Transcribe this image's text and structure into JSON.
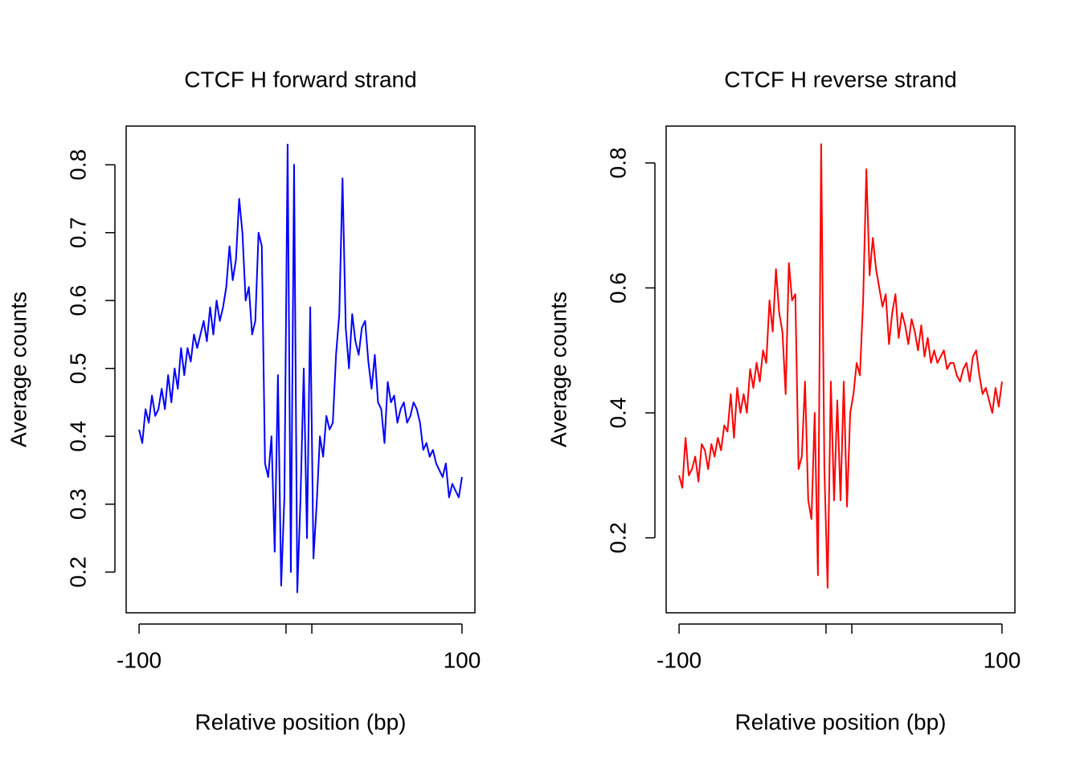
{
  "chart_data": [
    {
      "type": "line",
      "title": "CTCF H forward strand",
      "xlabel": "Relative position (bp)",
      "ylabel": "Average counts",
      "color": "#0000ff",
      "x": [
        -100,
        -98,
        -96,
        -94,
        -92,
        -90,
        -88,
        -86,
        -84,
        -82,
        -80,
        -78,
        -76,
        -74,
        -72,
        -70,
        -68,
        -66,
        -64,
        -62,
        -60,
        -58,
        -56,
        -54,
        -52,
        -50,
        -48,
        -46,
        -44,
        -42,
        -40,
        -38,
        -36,
        -34,
        -32,
        -30,
        -28,
        -26,
        -24,
        -22,
        -20,
        -18,
        -16,
        -14,
        -12,
        -10,
        -8,
        -6,
        -4,
        -2,
        0,
        2,
        4,
        6,
        8,
        10,
        12,
        14,
        16,
        18,
        20,
        22,
        24,
        26,
        28,
        30,
        32,
        34,
        36,
        38,
        40,
        42,
        44,
        46,
        48,
        50,
        52,
        54,
        56,
        58,
        60,
        62,
        64,
        66,
        68,
        70,
        72,
        74,
        76,
        78,
        80,
        82,
        84,
        86,
        88,
        90,
        92,
        94,
        96,
        98,
        100
      ],
      "values": [
        0.41,
        0.39,
        0.44,
        0.42,
        0.46,
        0.43,
        0.44,
        0.47,
        0.44,
        0.49,
        0.45,
        0.5,
        0.47,
        0.53,
        0.49,
        0.53,
        0.51,
        0.55,
        0.53,
        0.55,
        0.57,
        0.54,
        0.59,
        0.55,
        0.6,
        0.57,
        0.59,
        0.62,
        0.68,
        0.63,
        0.66,
        0.75,
        0.7,
        0.6,
        0.62,
        0.55,
        0.57,
        0.7,
        0.68,
        0.36,
        0.34,
        0.4,
        0.23,
        0.49,
        0.18,
        0.31,
        0.83,
        0.2,
        0.8,
        0.17,
        0.31,
        0.5,
        0.25,
        0.59,
        0.22,
        0.3,
        0.4,
        0.37,
        0.43,
        0.41,
        0.42,
        0.52,
        0.58,
        0.78,
        0.56,
        0.5,
        0.58,
        0.54,
        0.52,
        0.56,
        0.57,
        0.51,
        0.47,
        0.52,
        0.45,
        0.44,
        0.39,
        0.48,
        0.45,
        0.46,
        0.42,
        0.44,
        0.45,
        0.42,
        0.43,
        0.45,
        0.44,
        0.42,
        0.38,
        0.39,
        0.37,
        0.38,
        0.36,
        0.35,
        0.34,
        0.36,
        0.31,
        0.33,
        0.32,
        0.31,
        0.34
      ],
      "xlim": [
        -108,
        108
      ],
      "xticks": [
        -100,
        {
          "value": -9,
          "label": null
        },
        {
          "value": 7,
          "label": null
        },
        100
      ],
      "ylim": [
        0.14,
        0.857
      ],
      "yticks": [
        0.2,
        0.3,
        0.4,
        0.5,
        0.6,
        0.7,
        0.8
      ]
    },
    {
      "type": "line",
      "title": "CTCF H reverse strand",
      "xlabel": "Relative position (bp)",
      "ylabel": "Average counts",
      "color": "#ff0000",
      "x": [
        -100,
        -98,
        -96,
        -94,
        -92,
        -90,
        -88,
        -86,
        -84,
        -82,
        -80,
        -78,
        -76,
        -74,
        -72,
        -70,
        -68,
        -66,
        -64,
        -62,
        -60,
        -58,
        -56,
        -54,
        -52,
        -50,
        -48,
        -46,
        -44,
        -42,
        -40,
        -38,
        -36,
        -34,
        -32,
        -30,
        -28,
        -26,
        -24,
        -22,
        -20,
        -18,
        -16,
        -14,
        -12,
        -10,
        -8,
        -6,
        -4,
        -2,
        0,
        2,
        4,
        6,
        8,
        10,
        12,
        14,
        16,
        18,
        20,
        22,
        24,
        26,
        28,
        30,
        32,
        34,
        36,
        38,
        40,
        42,
        44,
        46,
        48,
        50,
        52,
        54,
        56,
        58,
        60,
        62,
        64,
        66,
        68,
        70,
        72,
        74,
        76,
        78,
        80,
        82,
        84,
        86,
        88,
        90,
        92,
        94,
        96,
        98,
        100
      ],
      "values": [
        0.3,
        0.28,
        0.36,
        0.3,
        0.31,
        0.33,
        0.29,
        0.35,
        0.34,
        0.31,
        0.35,
        0.33,
        0.36,
        0.34,
        0.38,
        0.37,
        0.43,
        0.36,
        0.44,
        0.4,
        0.43,
        0.4,
        0.47,
        0.44,
        0.48,
        0.45,
        0.5,
        0.48,
        0.58,
        0.53,
        0.63,
        0.56,
        0.53,
        0.43,
        0.64,
        0.58,
        0.59,
        0.31,
        0.33,
        0.45,
        0.26,
        0.23,
        0.4,
        0.14,
        0.83,
        0.31,
        0.12,
        0.45,
        0.26,
        0.42,
        0.26,
        0.45,
        0.25,
        0.4,
        0.43,
        0.48,
        0.46,
        0.58,
        0.79,
        0.62,
        0.68,
        0.63,
        0.6,
        0.57,
        0.59,
        0.51,
        0.56,
        0.59,
        0.52,
        0.56,
        0.54,
        0.51,
        0.55,
        0.53,
        0.5,
        0.54,
        0.49,
        0.52,
        0.48,
        0.5,
        0.48,
        0.49,
        0.5,
        0.47,
        0.48,
        0.48,
        0.46,
        0.45,
        0.47,
        0.48,
        0.45,
        0.49,
        0.5,
        0.46,
        0.43,
        0.44,
        0.42,
        0.4,
        0.44,
        0.41,
        0.45
      ],
      "xlim": [
        -108,
        108
      ],
      "xticks": [
        -100,
        {
          "value": -9,
          "label": null
        },
        {
          "value": 7,
          "label": null
        },
        100
      ],
      "ylim": [
        0.08,
        0.859
      ],
      "yticks": [
        0.2,
        0.4,
        0.6,
        0.8
      ]
    }
  ]
}
